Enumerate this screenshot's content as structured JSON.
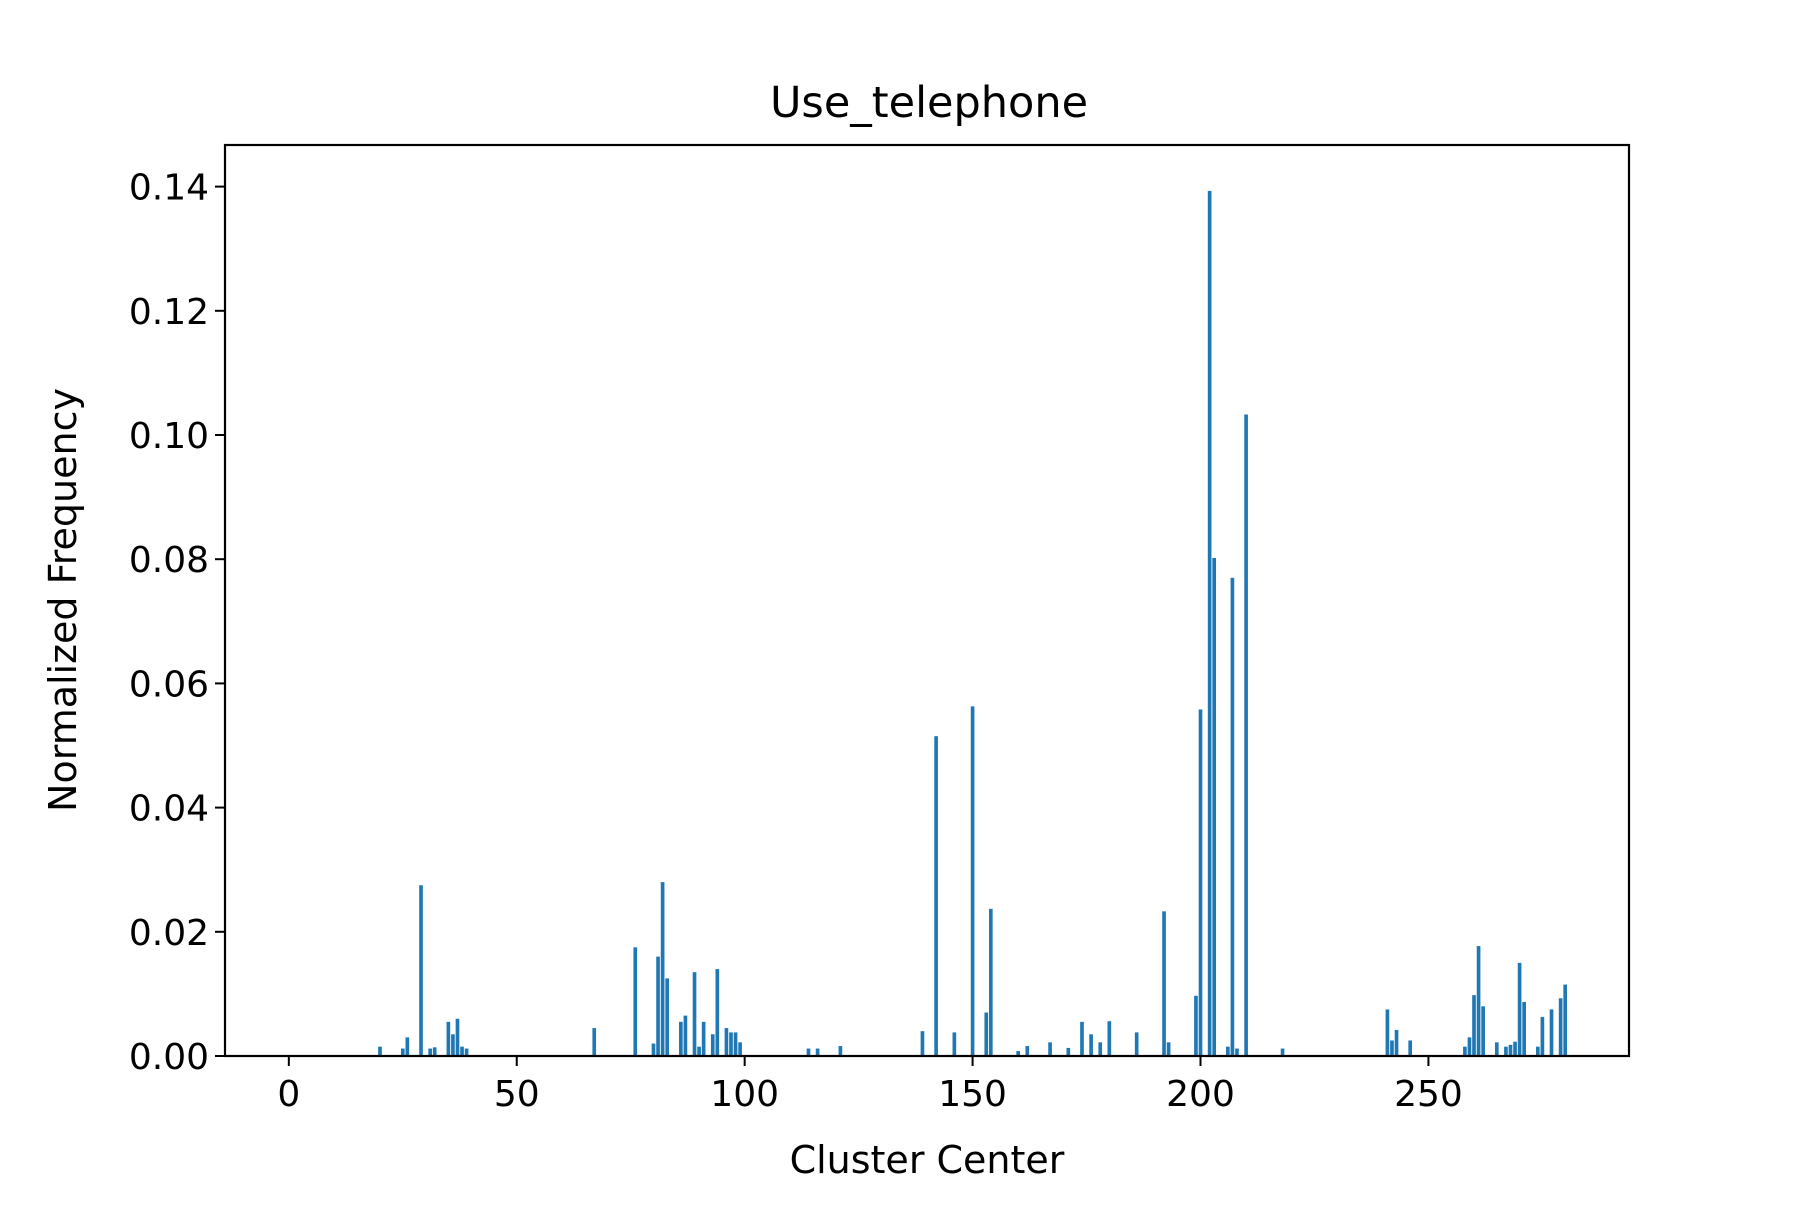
{
  "chart_data": {
    "type": "bar",
    "title": "Use_telephone",
    "xlabel": "Cluster Center",
    "ylabel": "Normalized Frequency",
    "xlim": [
      -14,
      294
    ],
    "ylim": [
      0,
      0.1467
    ],
    "xticks": [
      {
        "value": 0,
        "label": "0"
      },
      {
        "value": 50,
        "label": "50"
      },
      {
        "value": 100,
        "label": "100"
      },
      {
        "value": 150,
        "label": "150"
      },
      {
        "value": 200,
        "label": "200"
      },
      {
        "value": 250,
        "label": "250"
      }
    ],
    "yticks": [
      {
        "value": 0.0,
        "label": "0.00"
      },
      {
        "value": 0.02,
        "label": "0.02"
      },
      {
        "value": 0.04,
        "label": "0.04"
      },
      {
        "value": 0.06,
        "label": "0.06"
      },
      {
        "value": 0.08,
        "label": "0.08"
      },
      {
        "value": 0.1,
        "label": "0.10"
      },
      {
        "value": 0.12,
        "label": "0.12"
      },
      {
        "value": 0.14,
        "label": "0.14"
      }
    ],
    "grid": false,
    "bar_color": "#1f77b4",
    "bar_width": 0.8,
    "x": [
      20,
      25,
      26,
      29,
      31,
      32,
      35,
      36,
      37,
      38,
      39,
      67,
      76,
      80,
      81,
      82,
      83,
      86,
      87,
      89,
      90,
      91,
      93,
      94,
      96,
      97,
      98,
      99,
      114,
      116,
      121,
      139,
      142,
      146,
      150,
      153,
      154,
      160,
      162,
      167,
      171,
      174,
      176,
      178,
      180,
      186,
      192,
      193,
      199,
      200,
      202,
      203,
      206,
      207,
      208,
      210,
      218,
      241,
      242,
      243,
      246,
      258,
      259,
      260,
      261,
      262,
      265,
      267,
      268,
      269,
      270,
      271,
      274,
      275,
      277,
      279,
      280
    ],
    "values": [
      0.0015,
      0.0012,
      0.003,
      0.0275,
      0.0012,
      0.0014,
      0.0055,
      0.0035,
      0.006,
      0.0015,
      0.0012,
      0.0045,
      0.0175,
      0.002,
      0.016,
      0.028,
      0.0125,
      0.0055,
      0.0065,
      0.0135,
      0.0015,
      0.0055,
      0.0035,
      0.014,
      0.0045,
      0.0038,
      0.0038,
      0.0022,
      0.0012,
      0.0012,
      0.0016,
      0.004,
      0.0515,
      0.0038,
      0.0563,
      0.007,
      0.0237,
      0.0008,
      0.0016,
      0.0022,
      0.0013,
      0.0055,
      0.0035,
      0.0022,
      0.0056,
      0.0038,
      0.0233,
      0.0022,
      0.0097,
      0.0558,
      0.1393,
      0.0802,
      0.0015,
      0.077,
      0.0012,
      0.1033,
      0.0012,
      0.0075,
      0.0025,
      0.0042,
      0.0025,
      0.0015,
      0.003,
      0.0098,
      0.0177,
      0.008,
      0.0022,
      0.0015,
      0.0018,
      0.0023,
      0.015,
      0.0087,
      0.0015,
      0.0063,
      0.0075,
      0.0093,
      0.0115
    ]
  }
}
